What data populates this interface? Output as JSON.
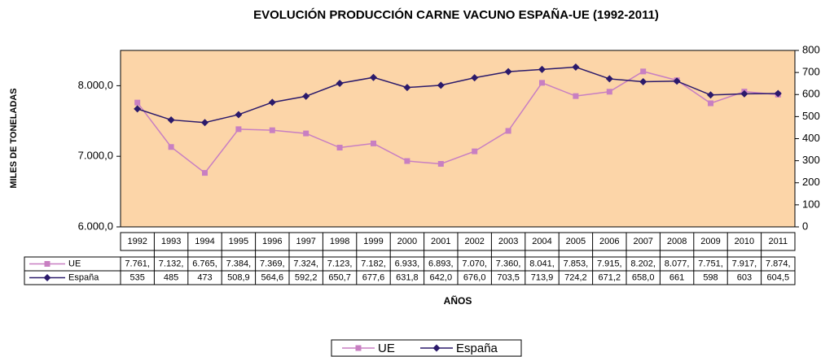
{
  "chart_data": {
    "type": "line",
    "title": "EVOLUCIÓN PRODUCCIÓN CARNE VACUNO ESPAÑA-UE (1992-2011)",
    "y_label": "MILES DE TONELADAS",
    "x_label": "AÑOS",
    "categories": [
      "1992",
      "1993",
      "1994",
      "1995",
      "1996",
      "1997",
      "1998",
      "1999",
      "2000",
      "2001",
      "2002",
      "2003",
      "2004",
      "2005",
      "2006",
      "2007",
      "2008",
      "2009",
      "2010",
      "2011"
    ],
    "series": [
      {
        "name": "UE",
        "color": "#c87fc2",
        "marker": "square",
        "axis": "y",
        "values": [
          7761,
          7132,
          6765,
          7384,
          7369,
          7324,
          7123,
          7182,
          6933,
          6893,
          7070,
          7360,
          8041,
          7853,
          7915,
          8202,
          8077,
          7751,
          7917,
          7874
        ],
        "value_labels": [
          "7.761,",
          "7.132,",
          "6.765,",
          "7.384,",
          "7.369,",
          "7.324,",
          "7.123,",
          "7.182,",
          "6.933,",
          "6.893,",
          "7.070,",
          "7.360,",
          "8.041,",
          "7.853,",
          "7.915,",
          "8.202,",
          "8.077,",
          "7.751,",
          "7.917,",
          "7.874,"
        ]
      },
      {
        "name": "España",
        "color": "#2b1a6b",
        "marker": "diamond",
        "axis": "y2",
        "values": [
          535,
          485,
          473,
          508.9,
          564.6,
          592.2,
          650.7,
          677.6,
          631.8,
          642.0,
          676.0,
          703.5,
          713.9,
          724.2,
          671.2,
          658.0,
          661,
          598,
          603,
          604.5
        ],
        "value_labels": [
          "535",
          "485",
          "473",
          "508,9",
          "564,6",
          "592,2",
          "650,7",
          "677,6",
          "631,8",
          "642,0",
          "676,0",
          "703,5",
          "713,9",
          "724,2",
          "671,2",
          "658,0",
          "661",
          "598",
          "603",
          "604,5"
        ]
      }
    ],
    "ylim": [
      6000,
      8500
    ],
    "yticks": [
      {
        "value": 6000,
        "label": "6.000,0"
      },
      {
        "value": 7000,
        "label": "7.000,0"
      },
      {
        "value": 8000,
        "label": "8.000,0"
      }
    ],
    "y2lim": [
      0,
      800
    ],
    "y2ticks": [
      0,
      100,
      200,
      300,
      400,
      500,
      600,
      700,
      800
    ],
    "plot_background": "#fcd5a8",
    "grid": false,
    "legend": "bottom"
  }
}
